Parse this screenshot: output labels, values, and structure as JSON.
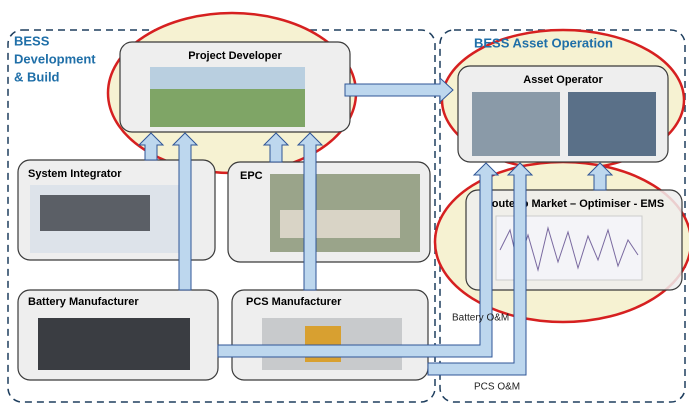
{
  "groups": {
    "build": {
      "title_lines": [
        "BESS",
        "Development",
        "& Build"
      ]
    },
    "operation": {
      "title": "BESS Asset Operation"
    }
  },
  "nodes": {
    "project_developer": {
      "label": "Project Developer"
    },
    "asset_operator": {
      "label": "Asset Operator"
    },
    "system_integrator": {
      "label": "System Integrator"
    },
    "epc": {
      "label": "EPC"
    },
    "route_to_market": {
      "label": "Route to Market – Optimiser - EMS"
    },
    "battery_manufacturer": {
      "label": "Battery Manufacturer"
    },
    "pcs_manufacturer": {
      "label": "PCS Manufacturer"
    }
  },
  "edge_labels": {
    "battery_om": "Battery O&M",
    "pcs_om": "PCS O&M"
  }
}
